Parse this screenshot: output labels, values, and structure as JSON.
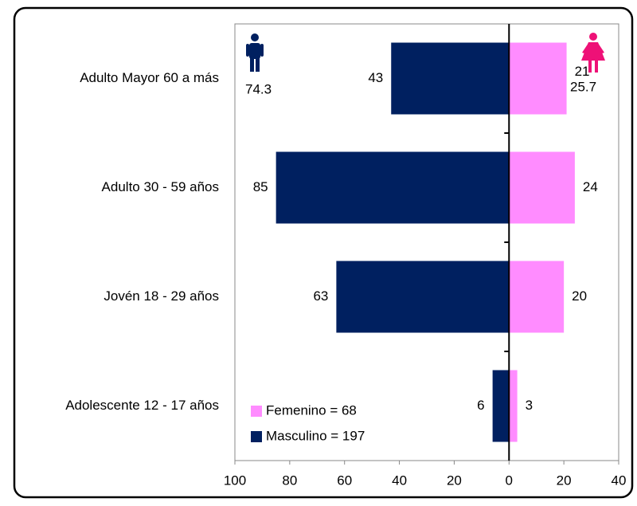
{
  "chart_data": {
    "type": "bar",
    "orientation": "horizontal",
    "categories": [
      "Adulto Mayor 60 a más",
      "Adulto 30 - 59 años",
      "Jovén 18 - 29 años",
      "Adolescente 12 - 17 años"
    ],
    "series": [
      {
        "name": "Femenino = 68",
        "color": "#ff8cff",
        "values": [
          21,
          24,
          20,
          3
        ]
      },
      {
        "name": "Masculino = 197",
        "color": "#002060",
        "values": [
          -43,
          -85,
          -63,
          -6
        ],
        "value_labels": [
          "43",
          "85",
          "63",
          "6"
        ]
      }
    ],
    "xlim": [
      -100,
      40
    ],
    "xticks": [
      {
        "value": -100,
        "label": "100"
      },
      {
        "value": -80,
        "label": "80"
      },
      {
        "value": -60,
        "label": "60"
      },
      {
        "value": -40,
        "label": "40"
      },
      {
        "value": -20,
        "label": "20"
      },
      0,
      20,
      40
    ],
    "annotations": [
      "74.3",
      "25.7"
    ],
    "legend": "bottom-left"
  }
}
